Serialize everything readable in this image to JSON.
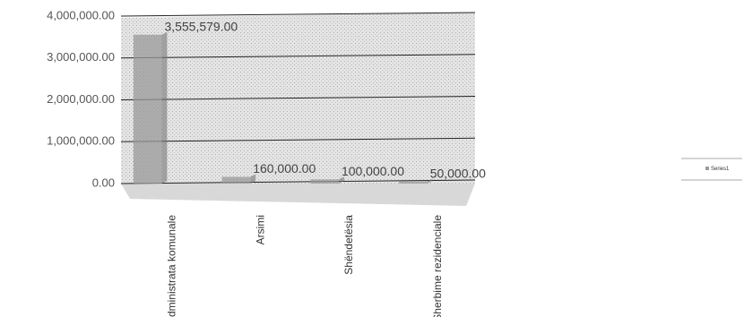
{
  "chart_data": {
    "type": "bar",
    "categories": [
      "Administrata komunale",
      "Arsimi",
      "Shëndetësia",
      "Sherbime rezidenciale"
    ],
    "series": [
      {
        "name": "Series1",
        "color": "#9a9a9a",
        "values": [
          3555579,
          160000,
          100000,
          50000
        ],
        "value_labels": [
          "3,555,579.00",
          "160,000.00",
          "100,000.00",
          "50,000.00"
        ]
      }
    ],
    "ylim": [
      0,
      4000000
    ],
    "yticks": [
      {
        "value": 0,
        "label": "0.00"
      },
      {
        "value": 1000000,
        "label": "1,000,000.00"
      },
      {
        "value": 2000000,
        "label": "2,000,000.00"
      },
      {
        "value": 3000000,
        "label": "3,000,000.00"
      },
      {
        "value": 4000000,
        "label": "4,000,000.00"
      }
    ],
    "grid": true,
    "legend": "right"
  }
}
